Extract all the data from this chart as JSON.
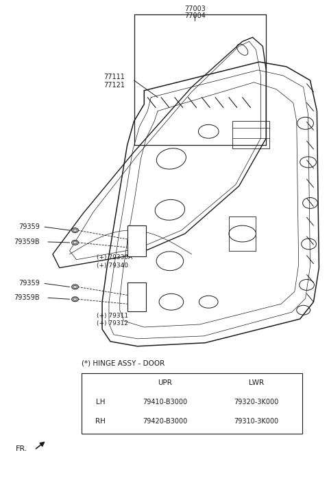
{
  "background_color": "#ffffff",
  "line_color": "#1a1a1a",
  "label_color": "#555555",
  "table_title": "(*) HINGE ASSY - DOOR",
  "table_headers": [
    "",
    "UPR",
    "LWR"
  ],
  "table_rows": [
    [
      "LH",
      "79410-B3000",
      "79320-3K000"
    ],
    [
      "RH",
      "79420-B3000",
      "79310-3K000"
    ]
  ],
  "fr_label": "FR.",
  "labels_77003_77004": [
    "77003",
    "77004"
  ],
  "labels_77111_77121": [
    "77111",
    "77121"
  ],
  "upper_hinge_labels": [
    "79359",
    "79359B",
    "(+) 79330A",
    "(+) 79340"
  ],
  "lower_hinge_labels": [
    "79359",
    "79359B",
    "(+) 79311",
    "(+) 79312"
  ]
}
